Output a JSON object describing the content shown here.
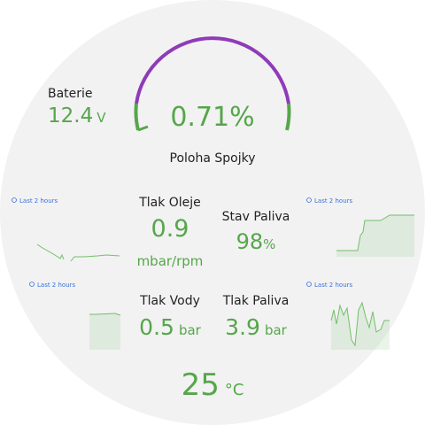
{
  "battery": {
    "label": "Baterie",
    "value": "12.4",
    "unit": "V"
  },
  "clutch": {
    "label": "Poloha Spojky",
    "value": "0.71%"
  },
  "oil_pressure": {
    "label": "Tlak Oleje",
    "value": "0.9",
    "unit": "mbar/rpm",
    "time_range": "Last 2 hours"
  },
  "fuel_level": {
    "label": "Stav Paliva",
    "value": "98",
    "unit": "%",
    "time_range": "Last 2 hours"
  },
  "water_pressure": {
    "label": "Tlak Vody",
    "value": "0.5",
    "unit": "bar",
    "time_range": "Last 2 hours"
  },
  "fuel_pressure": {
    "label": "Tlak Paliva",
    "value": "3.9",
    "unit": "bar",
    "time_range": "Last 2 hours"
  },
  "temperature": {
    "value": "25",
    "unit": "°C"
  }
}
